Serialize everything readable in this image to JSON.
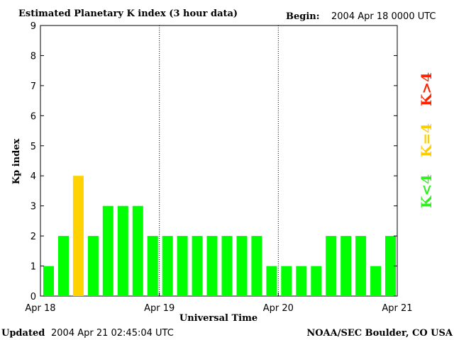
{
  "chart_data": {
    "type": "bar",
    "title": "Estimated Planetary K index (3 hour data)",
    "begin_label": "Begin:",
    "begin_value": "2004 Apr 18 0000 UTC",
    "xlabel": "Universal Time",
    "ylabel": "Kp index",
    "ylim": [
      0,
      9
    ],
    "yticks": [
      0,
      1,
      2,
      3,
      4,
      5,
      6,
      7,
      8,
      9
    ],
    "xtick_labels": [
      "Apr 18",
      "Apr 19",
      "Apr 20",
      "Apr 21"
    ],
    "values": [
      1,
      2,
      4,
      2,
      3,
      3,
      3,
      2,
      2,
      2,
      2,
      2,
      2,
      2,
      2,
      1,
      1,
      1,
      1,
      2,
      2,
      2,
      1,
      2
    ],
    "colors": {
      "low": "#00ff00",
      "equal": "#ffd200",
      "high": "#ff2000"
    },
    "legend": [
      {
        "text": "K<4",
        "color": "#33ee22"
      },
      {
        "text": "K=4",
        "color": "#ffcc00"
      },
      {
        "text": "K>4",
        "color": "#ff2200"
      }
    ],
    "grid": false,
    "day_dividers": "dotted"
  },
  "footer": {
    "updated_label": "Updated",
    "updated_value": "2004 Apr 21 02:45:04 UTC",
    "source": "NOAA/SEC Boulder, CO USA"
  }
}
